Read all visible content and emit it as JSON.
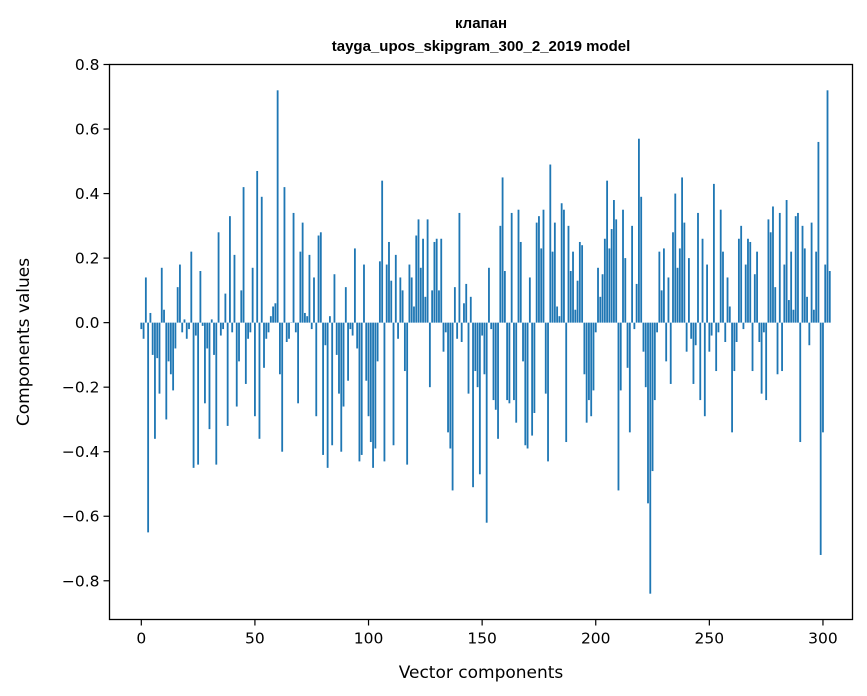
{
  "chart_data": {
    "type": "bar",
    "title_line1": "клапан",
    "title_line2": "tayga_upos_skipgram_300_2_2019 model",
    "xlabel": "Vector components",
    "ylabel": "Components values",
    "xlim": [
      -14,
      313
    ],
    "ylim": [
      -0.92,
      0.8
    ],
    "xticks": [
      0,
      50,
      100,
      150,
      200,
      250,
      300
    ],
    "xtick_labels": [
      "0",
      "50",
      "100",
      "150",
      "200",
      "250",
      "300"
    ],
    "yticks": [
      -0.8,
      -0.6,
      -0.4,
      -0.2,
      0.0,
      0.2,
      0.4,
      0.6,
      0.8
    ],
    "ytick_labels": [
      "−0.8",
      "−0.6",
      "−0.4",
      "−0.2",
      "0.0",
      "0.2",
      "0.4",
      "0.6",
      "0.8"
    ],
    "bar_color": "#1f77b4",
    "values": [
      -0.02,
      -0.05,
      0.14,
      -0.65,
      0.03,
      -0.1,
      -0.36,
      -0.11,
      -0.22,
      0.17,
      0.04,
      -0.3,
      -0.12,
      -0.16,
      -0.21,
      -0.08,
      0.11,
      0.18,
      -0.03,
      0.01,
      -0.05,
      -0.02,
      0.22,
      -0.45,
      -0.04,
      -0.44,
      0.16,
      -0.01,
      -0.25,
      -0.08,
      -0.33,
      0.01,
      -0.1,
      -0.44,
      0.28,
      -0.04,
      -0.02,
      0.09,
      -0.32,
      0.33,
      -0.03,
      0.21,
      -0.26,
      -0.12,
      0.1,
      0.42,
      -0.19,
      -0.05,
      -0.03,
      0.17,
      -0.29,
      0.47,
      -0.36,
      0.39,
      -0.14,
      -0.05,
      -0.03,
      0.02,
      0.05,
      0.06,
      0.72,
      -0.16,
      -0.4,
      0.42,
      -0.06,
      -0.05,
      0.0,
      0.34,
      -0.03,
      -0.25,
      0.22,
      0.31,
      0.03,
      0.02,
      0.21,
      -0.02,
      0.14,
      -0.29,
      0.27,
      0.28,
      -0.41,
      -0.07,
      -0.45,
      0.02,
      -0.38,
      0.15,
      -0.1,
      -0.22,
      -0.4,
      -0.26,
      0.11,
      -0.18,
      -0.02,
      -0.04,
      0.23,
      -0.08,
      -0.43,
      -0.41,
      0.18,
      -0.18,
      -0.29,
      -0.37,
      -0.45,
      -0.39,
      -0.12,
      0.19,
      0.44,
      -0.43,
      0.18,
      0.25,
      0.13,
      -0.38,
      0.21,
      -0.05,
      0.14,
      0.1,
      -0.15,
      -0.44,
      0.18,
      0.14,
      0.05,
      0.27,
      0.32,
      0.17,
      0.26,
      0.08,
      0.32,
      -0.2,
      0.1,
      0.25,
      0.26,
      0.1,
      0.26,
      -0.09,
      -0.03,
      -0.34,
      -0.39,
      -0.52,
      0.11,
      -0.05,
      0.34,
      -0.06,
      0.06,
      0.12,
      -0.22,
      0.08,
      -0.51,
      -0.15,
      -0.2,
      -0.47,
      -0.04,
      -0.16,
      -0.62,
      0.17,
      -0.02,
      -0.24,
      -0.27,
      -0.36,
      0.3,
      0.45,
      0.16,
      -0.24,
      -0.25,
      0.34,
      -0.24,
      -0.31,
      0.35,
      0.25,
      -0.12,
      -0.38,
      -0.39,
      0.14,
      -0.35,
      -0.28,
      0.31,
      0.33,
      0.23,
      0.35,
      -0.22,
      -0.43,
      0.49,
      0.22,
      0.31,
      0.05,
      0.02,
      0.37,
      0.35,
      -0.37,
      0.3,
      0.16,
      0.22,
      0.04,
      0.13,
      0.25,
      0.24,
      -0.16,
      -0.31,
      -0.24,
      -0.29,
      -0.21,
      -0.03,
      0.17,
      0.08,
      0.15,
      0.26,
      0.44,
      0.23,
      0.29,
      0.38,
      0.32,
      -0.52,
      -0.21,
      0.35,
      0.2,
      -0.14,
      -0.34,
      0.3,
      -0.02,
      0.12,
      0.57,
      0.39,
      -0.09,
      -0.2,
      -0.56,
      -0.84,
      -0.46,
      -0.24,
      -0.03,
      0.22,
      0.1,
      0.23,
      -0.12,
      0.14,
      -0.19,
      0.28,
      0.4,
      0.17,
      0.23,
      0.45,
      0.31,
      -0.09,
      0.2,
      -0.05,
      -0.19,
      -0.07,
      0.34,
      -0.24,
      0.26,
      -0.29,
      0.18,
      -0.09,
      -0.04,
      0.43,
      -0.15,
      -0.03,
      0.35,
      0.22,
      -0.06,
      0.14,
      0.05,
      -0.34,
      -0.15,
      -0.06,
      0.26,
      0.3,
      -0.02,
      0.18,
      0.26,
      0.25,
      -0.15,
      0.15,
      0.22,
      -0.06,
      -0.22,
      -0.03,
      -0.24,
      0.32,
      0.28,
      0.36,
      0.11,
      -0.16,
      0.34,
      -0.15,
      0.18,
      0.38,
      0.07,
      0.22,
      0.04,
      0.33,
      0.34,
      -0.37,
      0.3,
      0.23,
      0.08,
      -0.07,
      0.31,
      0.04,
      0.22,
      0.56,
      -0.72,
      -0.34,
      0.18,
      0.72,
      0.16
    ]
  }
}
